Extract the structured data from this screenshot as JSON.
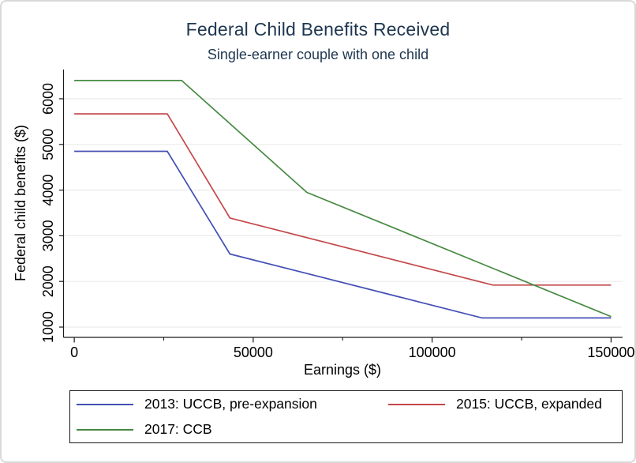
{
  "figure": {
    "background": "#ffffff",
    "border_color": "#d9d9d9"
  },
  "chart_data": {
    "type": "line",
    "title": "Federal Child Benefits Received",
    "subtitle": "Single-earner couple with one child",
    "title_color": "#1e3650",
    "xlabel": "Earnings ($)",
    "ylabel": "Federal child benefits ($)",
    "xlim": [
      -3000,
      153000
    ],
    "ylim": [
      775,
      6640
    ],
    "xticks": [
      0,
      50000,
      100000,
      150000
    ],
    "xtick_labels": [
      "0",
      "50000",
      "100000",
      "150000"
    ],
    "x_minor_ticks": [
      25000,
      75000,
      125000
    ],
    "yticks": [
      1000,
      2000,
      3000,
      4000,
      5000,
      6000
    ],
    "ytick_labels": [
      "1000",
      "2000",
      "3000",
      "4000",
      "5000",
      "6000"
    ],
    "grid": "horizontal-only",
    "gridline_color": "#ebebeb",
    "axis_color": "#1a1a1a",
    "tick_label_color": "#000000",
    "legend_position": "bottom",
    "series": [
      {
        "name": "2013: UCCB, pre-expansion",
        "color": "#4450b4",
        "points": [
          [
            0,
            4850
          ],
          [
            26000,
            4850
          ],
          [
            43500,
            2600
          ],
          [
            114000,
            1200
          ],
          [
            150000,
            1200
          ]
        ]
      },
      {
        "name": "2015: UCCB, expanded",
        "color": "#c4484b",
        "points": [
          [
            0,
            5670
          ],
          [
            26000,
            5670
          ],
          [
            43500,
            3390
          ],
          [
            117000,
            1920
          ],
          [
            150000,
            1920
          ]
        ]
      },
      {
        "name": "2017: CCB",
        "color": "#478a42",
        "points": [
          [
            0,
            6400
          ],
          [
            30000,
            6400
          ],
          [
            65000,
            3950
          ],
          [
            150000,
            1230
          ]
        ]
      }
    ]
  }
}
